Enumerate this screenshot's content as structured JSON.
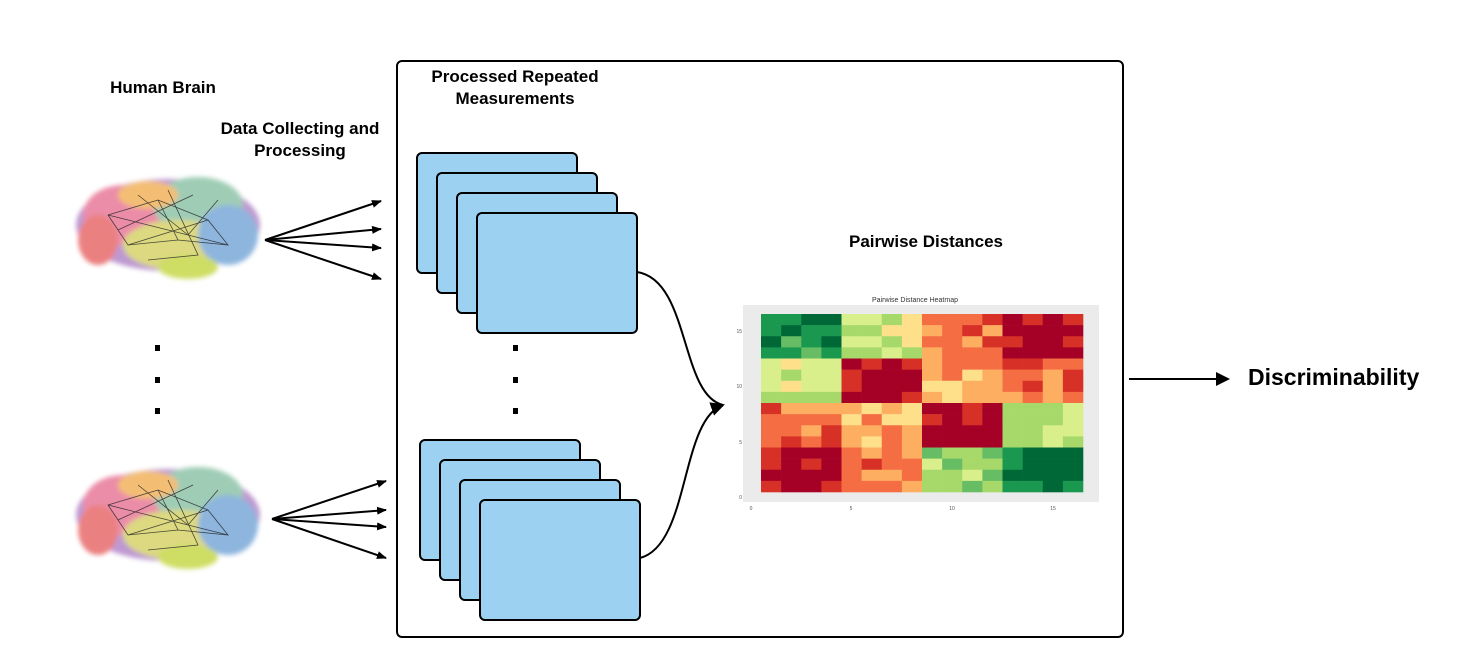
{
  "labels": {
    "human_brain": "Human Brain",
    "data_collecting": "Data Collecting and Processing",
    "processed": "Processed Repeated Measurements",
    "pairwise": "Pairwise Distances",
    "discriminability": "Discriminability"
  },
  "heatmap": {
    "title": "Pairwise Distance Heatmap",
    "x_ticks": [
      "0",
      "5",
      "10",
      "15"
    ],
    "y_ticks": [
      "0",
      "5",
      "10",
      "15"
    ],
    "colors": {
      "dark_green": "#006837",
      "green": "#1a9850",
      "light_green": "#66bd63",
      "yellow_green": "#a6d96a",
      "pale": "#d9ef8b",
      "cream": "#fee08b",
      "orange": "#fdae61",
      "dark_orange": "#f46d43",
      "red": "#d73027",
      "dark_red": "#a50026"
    }
  },
  "colors": {
    "measurement_fill": "#9dd1f2",
    "arrow": "#000000",
    "heatmap_bg": "#ebebeb"
  }
}
